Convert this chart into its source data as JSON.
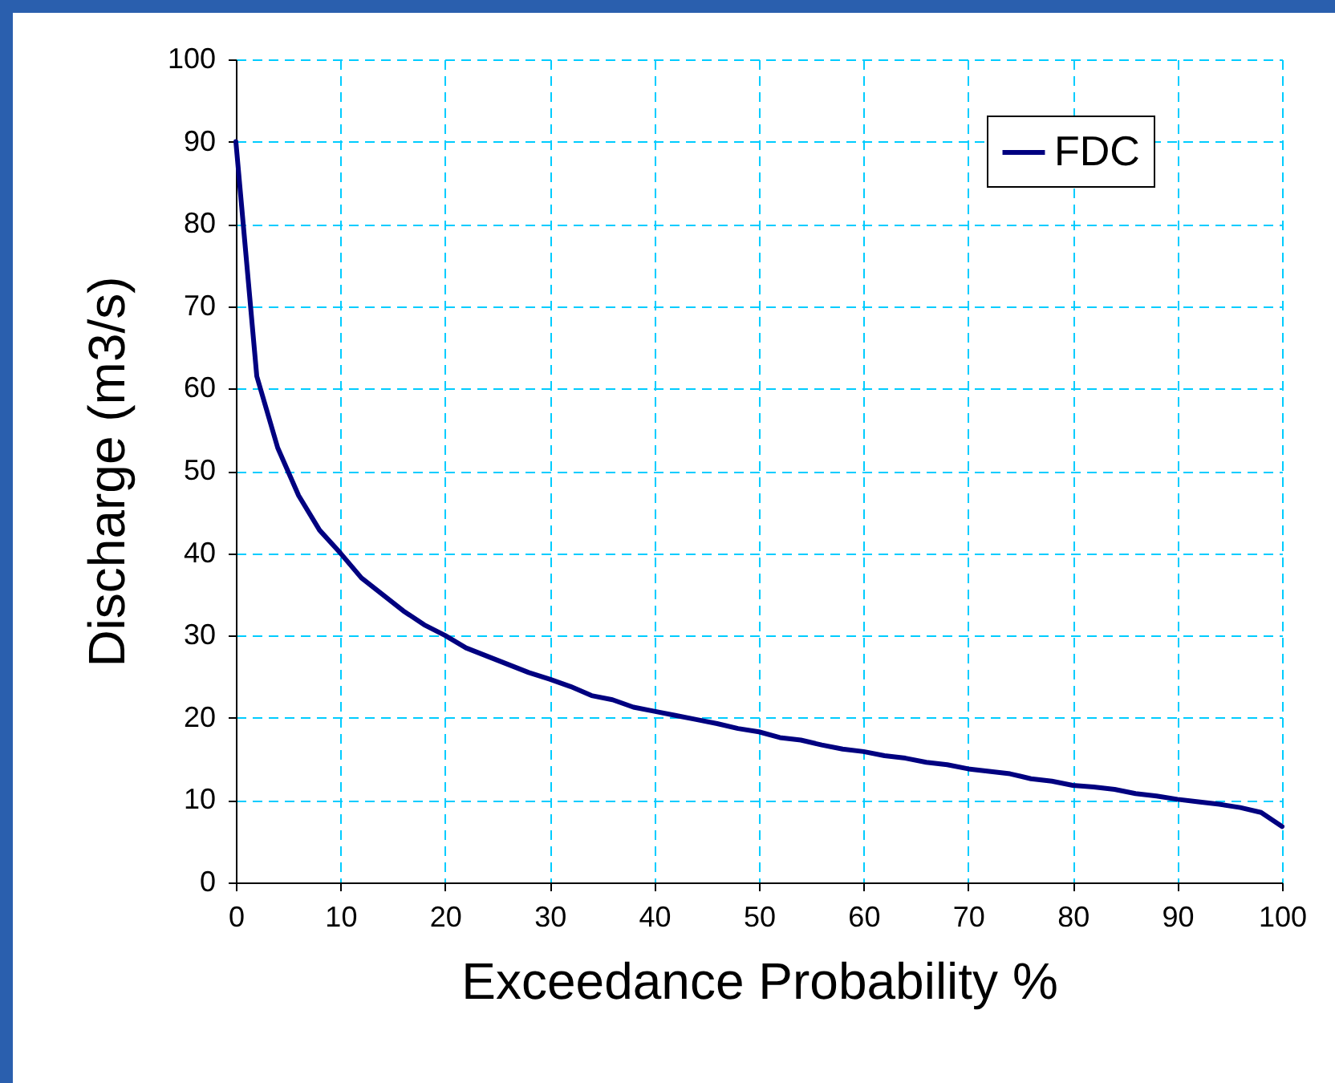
{
  "chart_data": {
    "type": "line",
    "xlabel": "Exceedance Probability %",
    "ylabel": "Discharge (m3/s)",
    "x": [
      0,
      2,
      4,
      6,
      8,
      10,
      12,
      14,
      16,
      18,
      20,
      22,
      24,
      26,
      28,
      30,
      32,
      34,
      36,
      38,
      40,
      42,
      44,
      46,
      48,
      50,
      52,
      54,
      56,
      58,
      60,
      62,
      64,
      66,
      68,
      70,
      72,
      74,
      76,
      78,
      80,
      82,
      84,
      86,
      88,
      90,
      92,
      94,
      96,
      98,
      100
    ],
    "series": [
      {
        "name": "FDC",
        "color": "#000080",
        "values": [
          90,
          61.5,
          52.8,
          47,
          42.8,
          40,
          37,
          35,
          33,
          31.3,
          30,
          28.5,
          27.5,
          26.5,
          25.5,
          24.7,
          23.8,
          22.7,
          22.2,
          21.3,
          20.8,
          20.3,
          19.8,
          19.3,
          18.7,
          18.3,
          17.6,
          17.3,
          16.7,
          16.2,
          15.9,
          15.4,
          15.1,
          14.6,
          14.3,
          13.8,
          13.5,
          13.2,
          12.6,
          12.3,
          11.8,
          11.6,
          11.3,
          10.8,
          10.5,
          10.1,
          9.8,
          9.5,
          9.1,
          8.5,
          6.8
        ]
      }
    ],
    "xlim": [
      0,
      100
    ],
    "ylim": [
      0,
      100
    ],
    "xticks": [
      0,
      10,
      20,
      30,
      40,
      50,
      60,
      70,
      80,
      90,
      100
    ],
    "yticks": [
      0,
      10,
      20,
      30,
      40,
      50,
      60,
      70,
      80,
      90,
      100
    ],
    "grid": true,
    "legend": "top right",
    "marker": "none",
    "line_style": "solid"
  }
}
